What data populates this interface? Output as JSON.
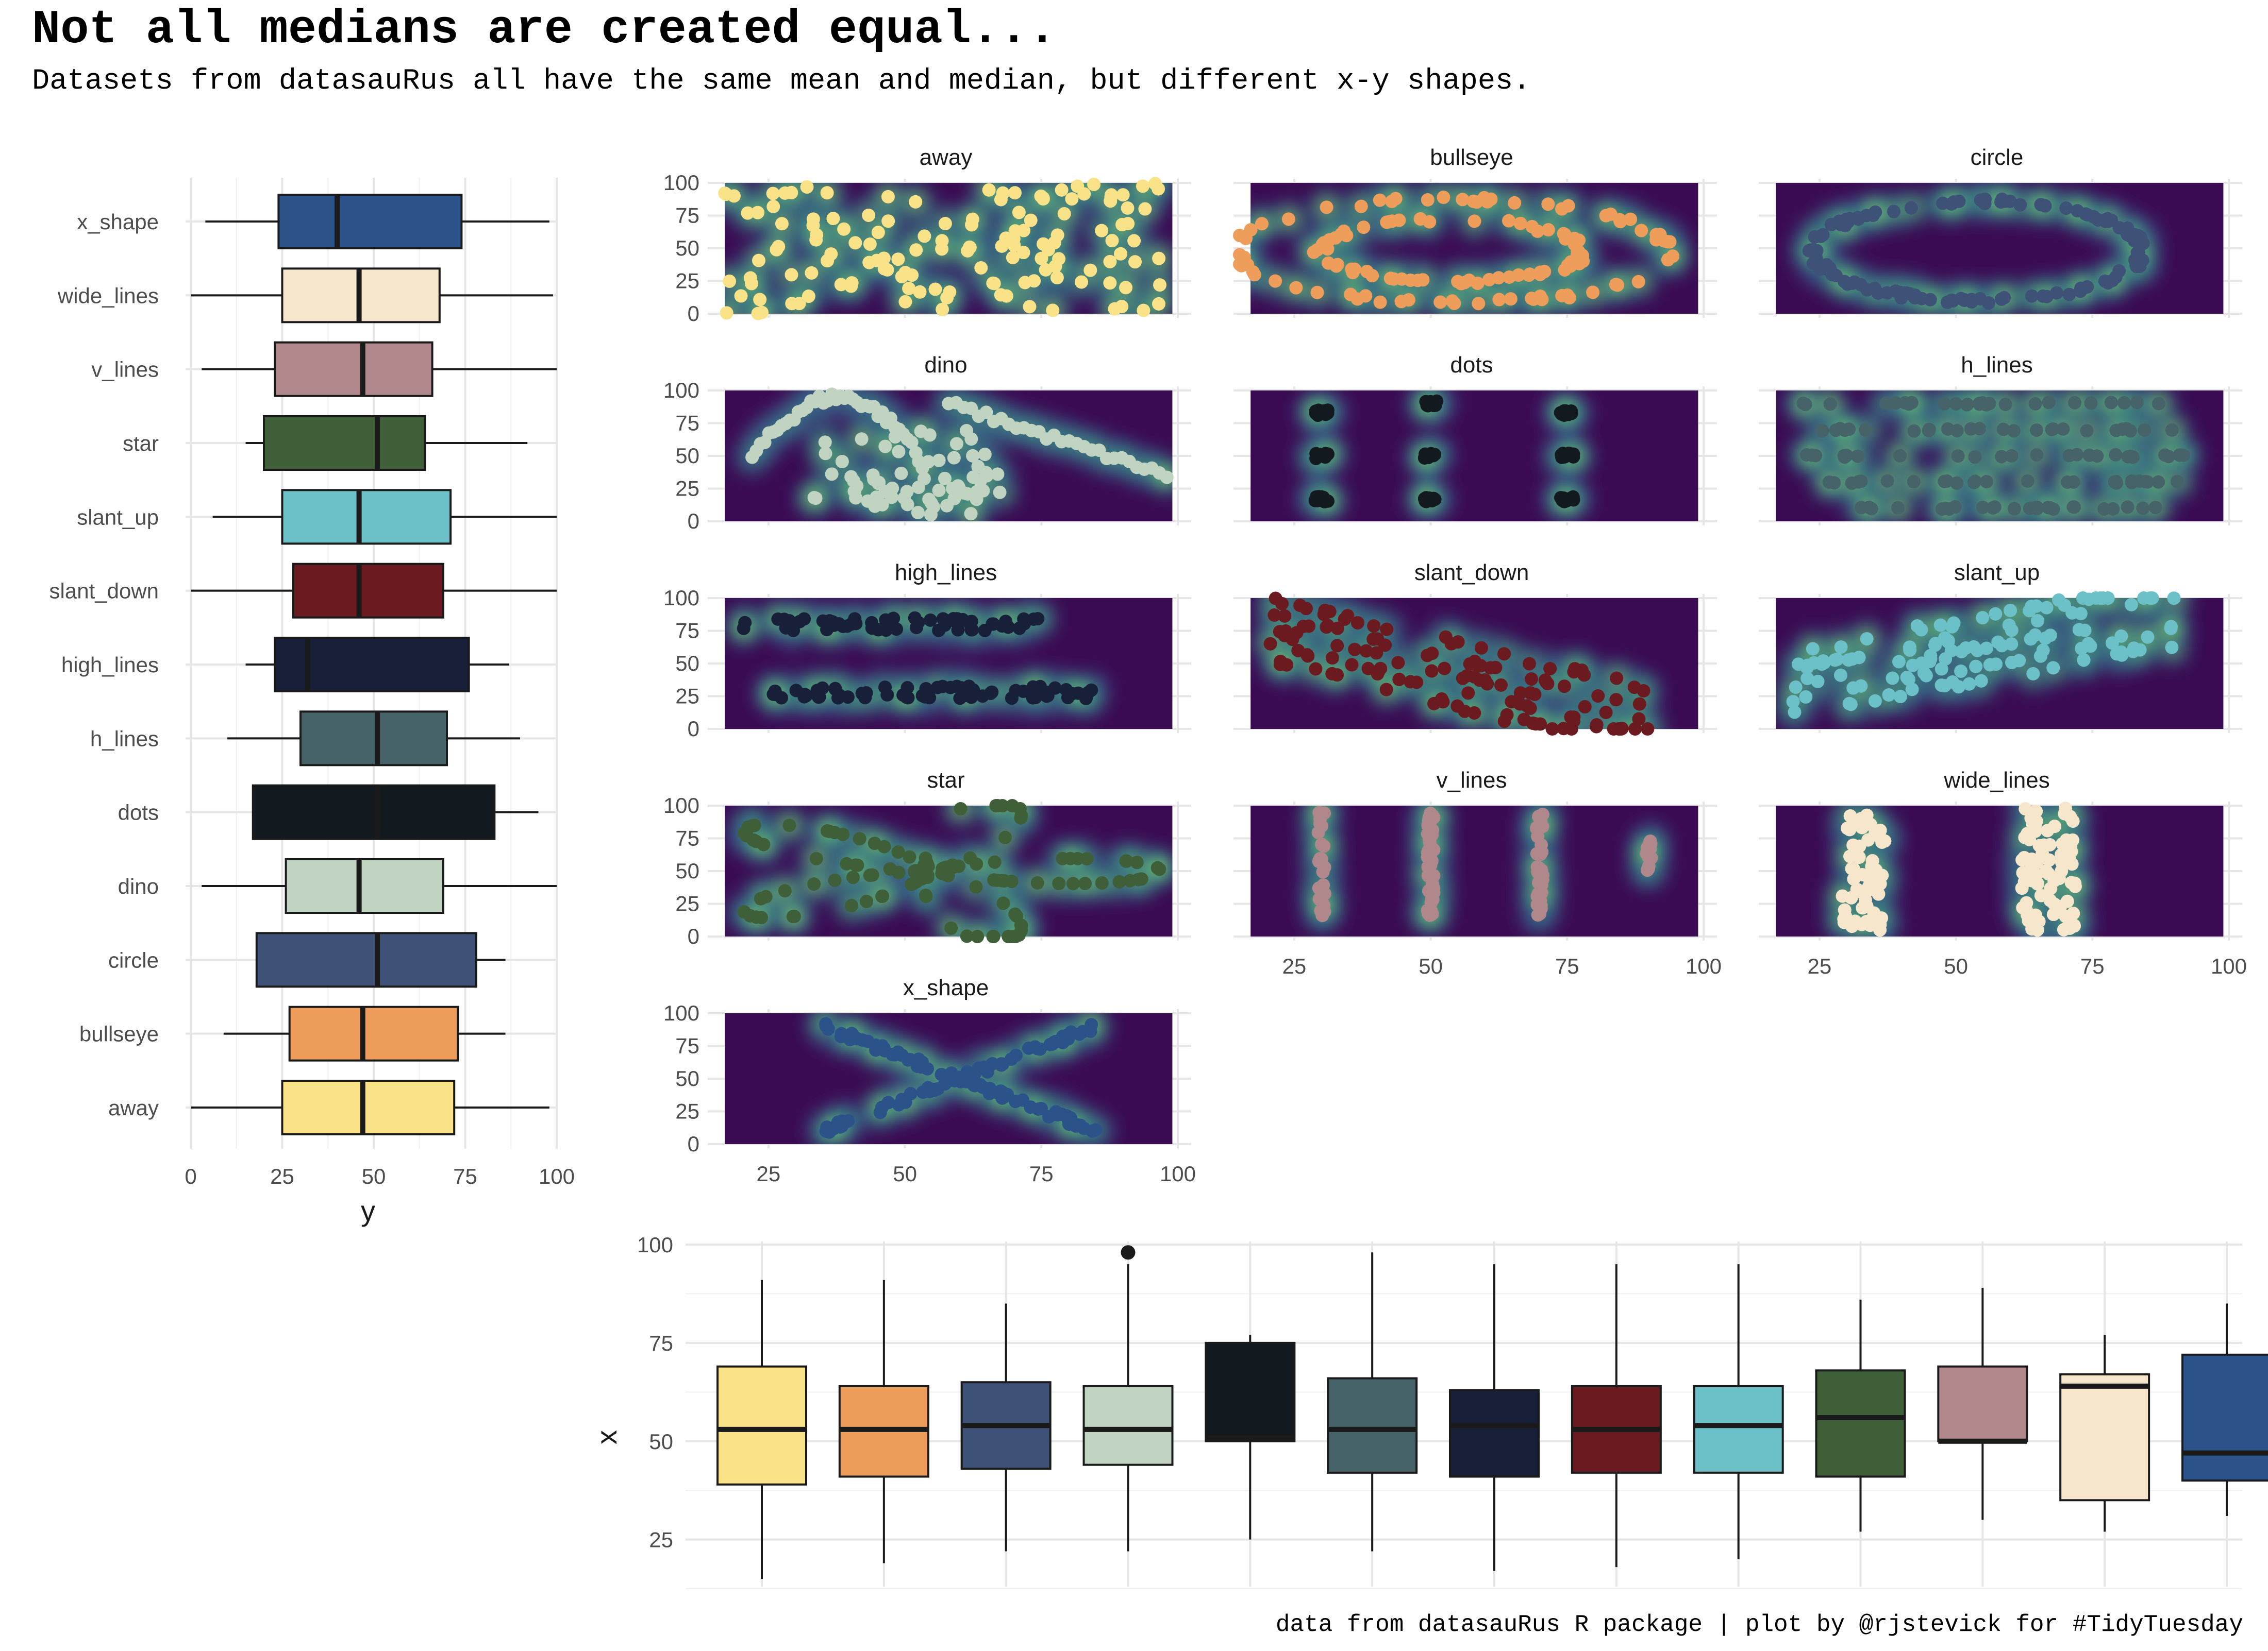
{
  "chart_data": [
    {
      "type": "boxplot",
      "title": "Not all medians are created equal...",
      "subtitle": "Datasets from datasauRus all have the same mean and median, but different x-y shapes.",
      "caption": "data from datasauRus R package | plot by @rjstevick for #TidyTuesday",
      "orientation": "horizontal",
      "xlabel": "y",
      "ylabel": "",
      "xlim": [
        0,
        100
      ],
      "xticks": [
        0,
        25,
        50,
        75,
        100
      ],
      "categories": [
        "x_shape",
        "wide_lines",
        "v_lines",
        "star",
        "slant_up",
        "slant_down",
        "high_lines",
        "h_lines",
        "dots",
        "dino",
        "circle",
        "bullseye",
        "away"
      ],
      "series": [
        {
          "name": "x_shape",
          "color": "#2b5389",
          "min": 4,
          "q1": 24,
          "median": 40,
          "q3": 74,
          "max": 98
        },
        {
          "name": "wide_lines",
          "color": "#f5e6cc",
          "min": 0,
          "q1": 25,
          "median": 46,
          "q3": 68,
          "max": 99
        },
        {
          "name": "v_lines",
          "color": "#b0878a",
          "min": 3,
          "q1": 23,
          "median": 47,
          "q3": 66,
          "max": 100
        },
        {
          "name": "star",
          "color": "#3f5f38",
          "min": 15,
          "q1": 20,
          "median": 51,
          "q3": 64,
          "max": 92
        },
        {
          "name": "slant_up",
          "color": "#6cc0c7",
          "min": 6,
          "q1": 25,
          "median": 46,
          "q3": 71,
          "max": 100
        },
        {
          "name": "slant_down",
          "color": "#6b1a20",
          "min": 0,
          "q1": 28,
          "median": 46,
          "q3": 69,
          "max": 100
        },
        {
          "name": "high_lines",
          "color": "#172038",
          "min": 15,
          "q1": 23,
          "median": 32,
          "q3": 76,
          "max": 87
        },
        {
          "name": "h_lines",
          "color": "#456368",
          "min": 10,
          "q1": 30,
          "median": 51,
          "q3": 70,
          "max": 90
        },
        {
          "name": "dots",
          "color": "#121a20",
          "min": 17,
          "q1": 17,
          "median": 51,
          "q3": 83,
          "max": 95
        },
        {
          "name": "dino",
          "color": "#c1d4c1",
          "min": 3,
          "q1": 26,
          "median": 46,
          "q3": 69,
          "max": 100
        },
        {
          "name": "circle",
          "color": "#3e5177",
          "min": 18,
          "q1": 18,
          "median": 51,
          "q3": 78,
          "max": 86
        },
        {
          "name": "bullseye",
          "color": "#ef9d5a",
          "min": 9,
          "q1": 27,
          "median": 47,
          "q3": 73,
          "max": 86
        },
        {
          "name": "away",
          "color": "#f9e287",
          "min": 0,
          "q1": 25,
          "median": 47,
          "q3": 72,
          "max": 98
        }
      ]
    },
    {
      "type": "scatter",
      "layout": "facets",
      "xlabel": "",
      "ylabel": "",
      "xlim": [
        15,
        100
      ],
      "ylim": [
        0,
        100
      ],
      "xticks": [
        25,
        50,
        75,
        100
      ],
      "yticks": [
        0,
        25,
        50,
        75,
        100
      ],
      "background": "density",
      "facets": [
        {
          "name": "away",
          "color": "#f9e287",
          "shape": "away"
        },
        {
          "name": "bullseye",
          "color": "#ef9d5a",
          "shape": "bullseye"
        },
        {
          "name": "circle",
          "color": "#3e5177",
          "shape": "circle"
        },
        {
          "name": "dino",
          "color": "#c1d4c1",
          "shape": "dino"
        },
        {
          "name": "dots",
          "color": "#121a20",
          "shape": "dots"
        },
        {
          "name": "h_lines",
          "color": "#456368",
          "shape": "h_lines"
        },
        {
          "name": "high_lines",
          "color": "#172038",
          "shape": "high_lines"
        },
        {
          "name": "slant_down",
          "color": "#6b1a20",
          "shape": "slant_down"
        },
        {
          "name": "slant_up",
          "color": "#6cc0c7",
          "shape": "slant_up"
        },
        {
          "name": "star",
          "color": "#3f5f38",
          "shape": "star"
        },
        {
          "name": "v_lines",
          "color": "#b0878a",
          "shape": "v_lines"
        },
        {
          "name": "wide_lines",
          "color": "#f5e6cc",
          "shape": "wide_lines"
        },
        {
          "name": "x_shape",
          "color": "#2b5389",
          "shape": "x_shape"
        }
      ]
    },
    {
      "type": "boxplot",
      "orientation": "vertical",
      "xlabel": "",
      "ylabel": "x",
      "ylim": [
        15,
        100
      ],
      "yticks": [
        25,
        50,
        75,
        100
      ],
      "series": [
        {
          "name": "away",
          "color": "#f9e287",
          "min": 15,
          "q1": 39,
          "median": 53,
          "q3": 69,
          "max": 91
        },
        {
          "name": "bullseye",
          "color": "#ef9d5a",
          "min": 19,
          "q1": 41,
          "median": 53,
          "q3": 64,
          "max": 91
        },
        {
          "name": "circle",
          "color": "#3e5177",
          "min": 22,
          "q1": 43,
          "median": 54,
          "q3": 65,
          "max": 85
        },
        {
          "name": "dino",
          "color": "#c1d4c1",
          "min": 22,
          "q1": 44,
          "median": 53,
          "q3": 64,
          "max": 95,
          "outliers": [
            98
          ]
        },
        {
          "name": "dots",
          "color": "#121a20",
          "min": 25,
          "q1": 50,
          "median": 51,
          "q3": 75,
          "max": 77
        },
        {
          "name": "h_lines",
          "color": "#456368",
          "min": 22,
          "q1": 42,
          "median": 53,
          "q3": 66,
          "max": 98
        },
        {
          "name": "high_lines",
          "color": "#172038",
          "min": 17,
          "q1": 41,
          "median": 54,
          "q3": 63,
          "max": 95
        },
        {
          "name": "slant_down",
          "color": "#6b1a20",
          "min": 18,
          "q1": 42,
          "median": 53,
          "q3": 64,
          "max": 95
        },
        {
          "name": "slant_up",
          "color": "#6cc0c7",
          "min": 20,
          "q1": 42,
          "median": 54,
          "q3": 64,
          "max": 95
        },
        {
          "name": "star",
          "color": "#3f5f38",
          "min": 27,
          "q1": 41,
          "median": 56,
          "q3": 68,
          "max": 86
        },
        {
          "name": "v_lines",
          "color": "#b0878a",
          "min": 30,
          "q1": 50,
          "median": 50,
          "q3": 69,
          "max": 89
        },
        {
          "name": "wide_lines",
          "color": "#f5e6cc",
          "min": 27,
          "q1": 35,
          "median": 64,
          "q3": 67,
          "max": 77
        },
        {
          "name": "x_shape",
          "color": "#2b5389",
          "min": 31,
          "q1": 40,
          "median": 47,
          "q3": 72,
          "max": 85
        }
      ]
    }
  ]
}
